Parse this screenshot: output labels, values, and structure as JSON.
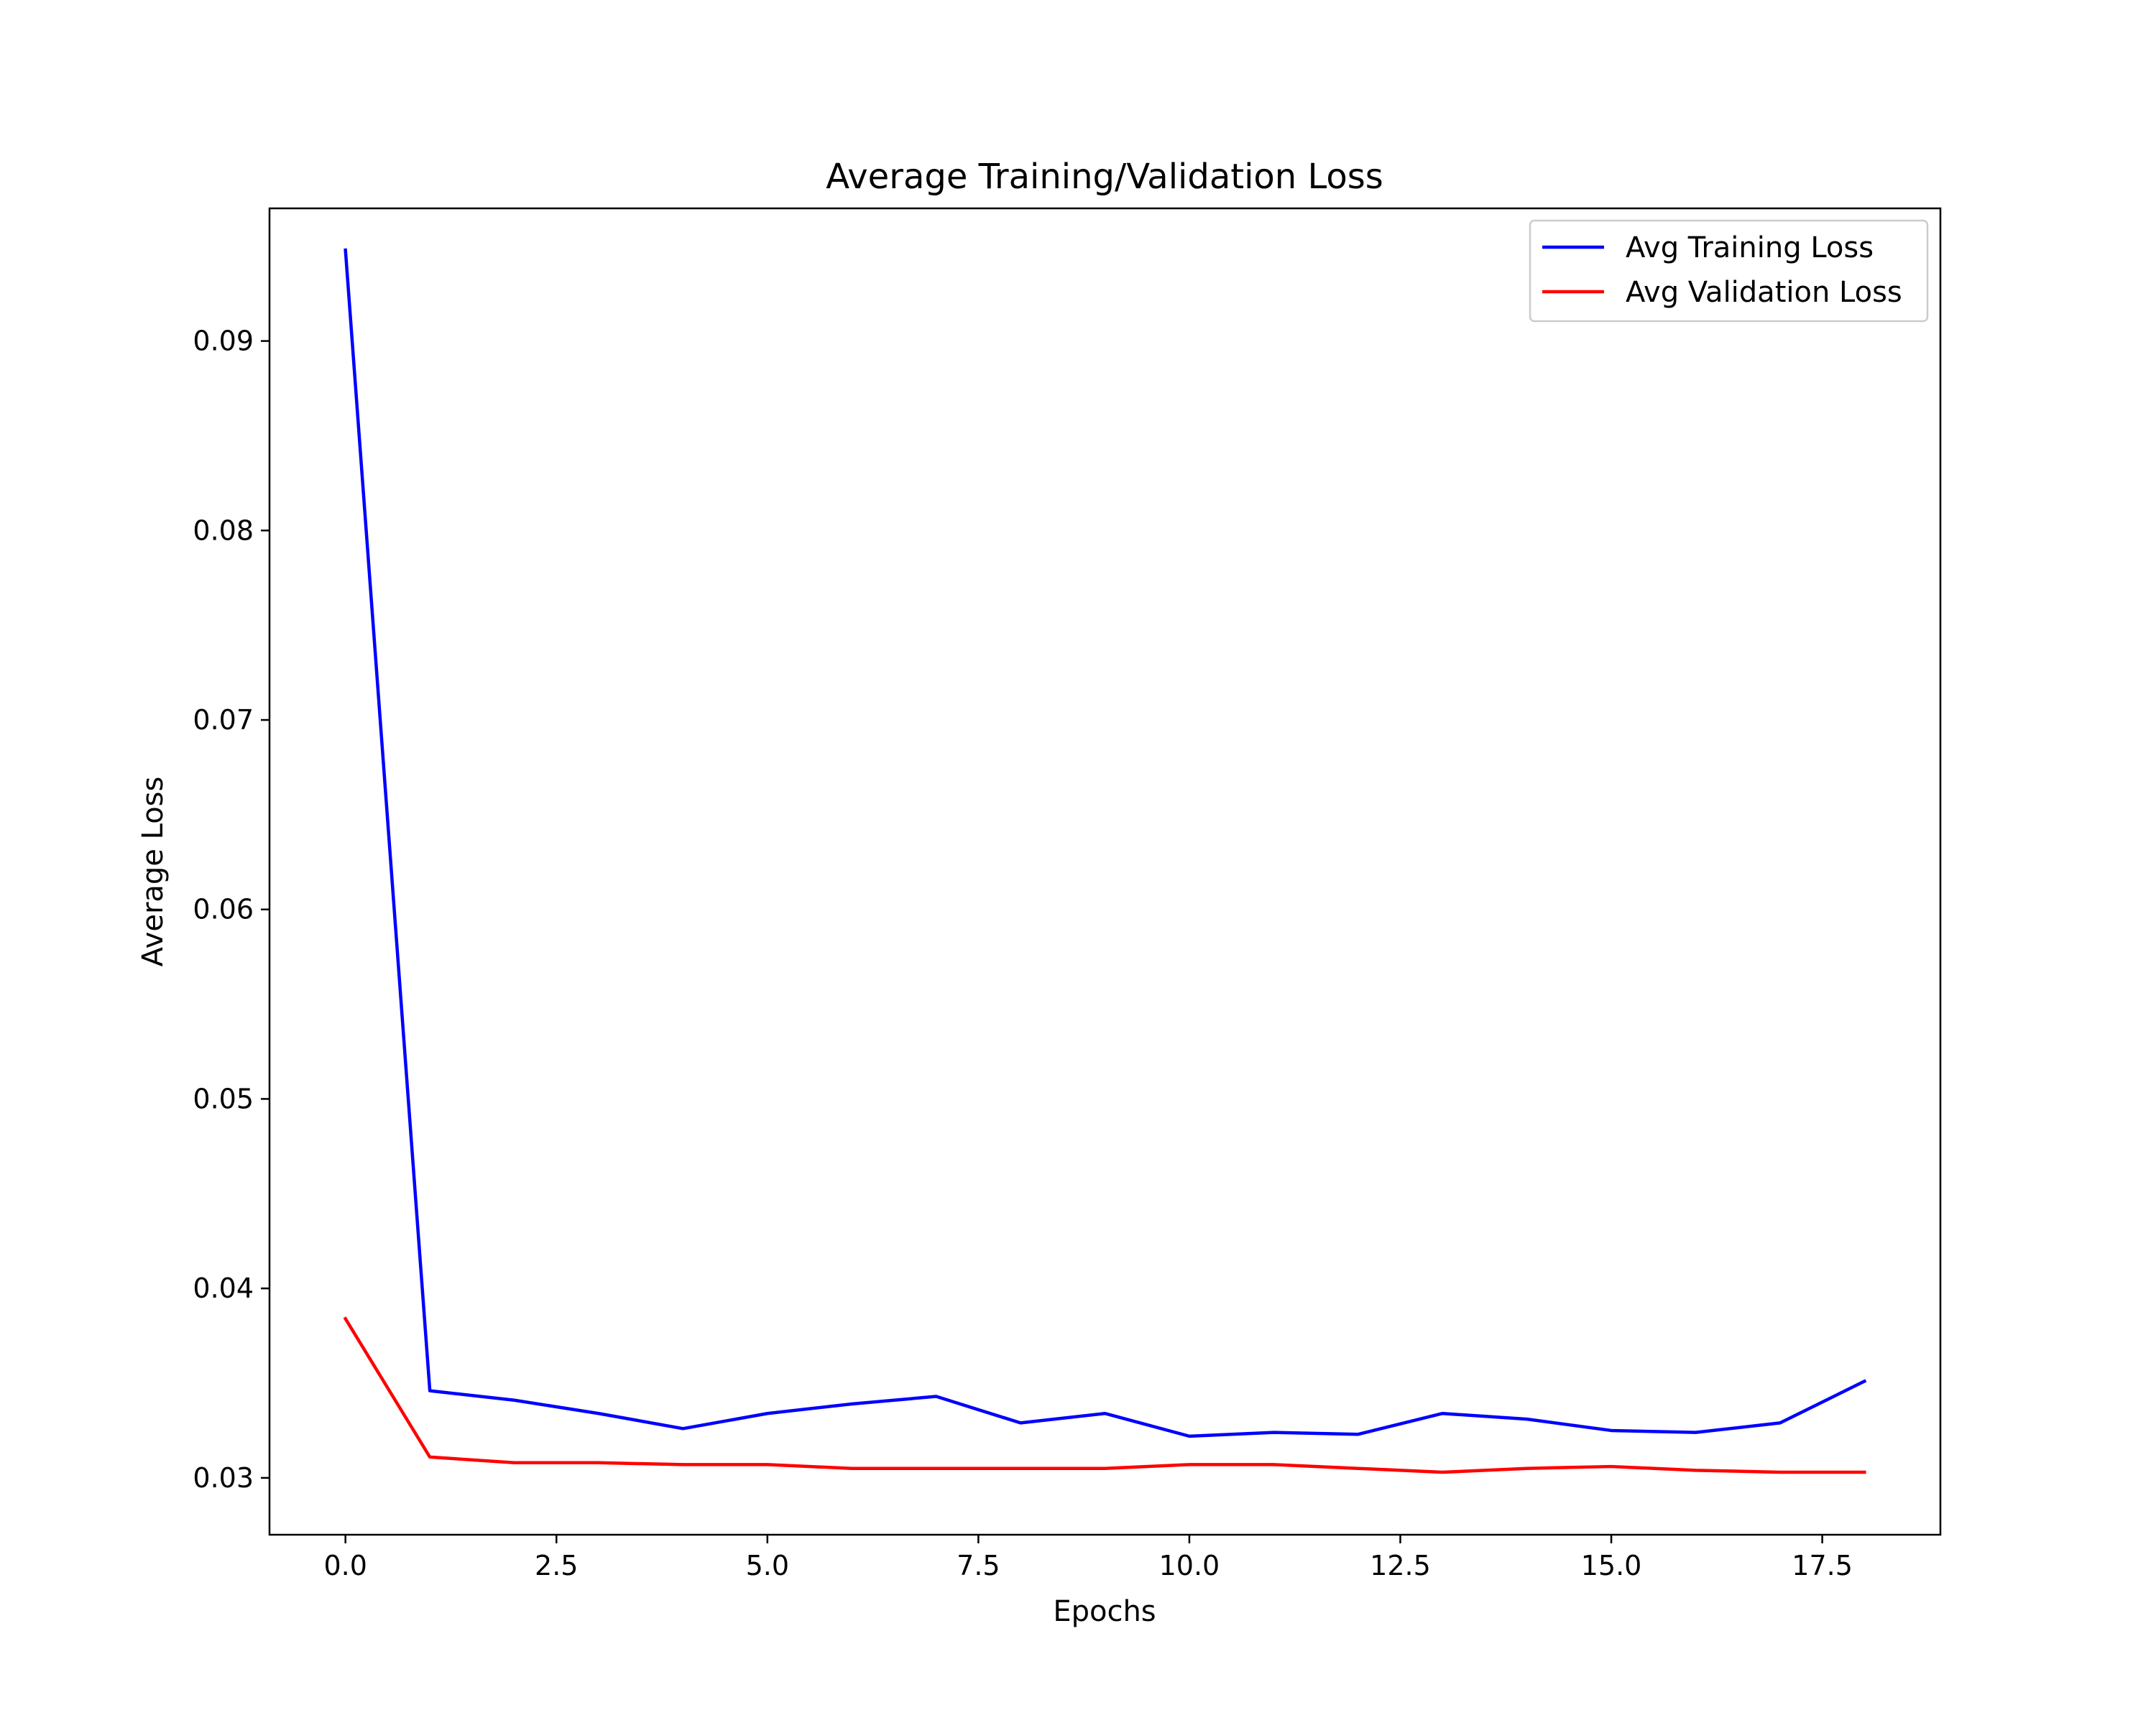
{
  "chart_data": {
    "type": "line",
    "title": "Average Training/Validation Loss",
    "xlabel": "Epochs",
    "ylabel": "Average Loss",
    "xlim": [
      -0.9,
      18.9
    ],
    "ylim": [
      0.027,
      0.097
    ],
    "xticks": [
      0.0,
      2.5,
      5.0,
      7.5,
      10.0,
      12.5,
      15.0,
      17.5
    ],
    "xtick_labels": [
      "0.0",
      "2.5",
      "5.0",
      "7.5",
      "10.0",
      "12.5",
      "15.0",
      "17.5"
    ],
    "yticks": [
      0.03,
      0.04,
      0.05,
      0.06,
      0.07,
      0.08,
      0.09
    ],
    "ytick_labels": [
      "0.03",
      "0.04",
      "0.05",
      "0.06",
      "0.07",
      "0.08",
      "0.09"
    ],
    "grid": false,
    "legend_position": "top-right",
    "x": [
      0,
      1,
      2,
      3,
      4,
      5,
      6,
      7,
      8,
      9,
      10,
      11,
      12,
      13,
      14,
      15,
      16,
      17,
      18
    ],
    "series": [
      {
        "name": "Avg Training Loss",
        "color": "#0000ff",
        "values": [
          0.0948,
          0.0346,
          0.0341,
          0.0334,
          0.0326,
          0.0334,
          0.0339,
          0.0343,
          0.0329,
          0.0334,
          0.0322,
          0.0324,
          0.0323,
          0.0334,
          0.0331,
          0.0325,
          0.0324,
          0.0329,
          0.0351
        ]
      },
      {
        "name": "Avg Validation Loss",
        "color": "#ff0000",
        "values": [
          0.0384,
          0.0311,
          0.0308,
          0.0308,
          0.0307,
          0.0307,
          0.0305,
          0.0305,
          0.0305,
          0.0305,
          0.0307,
          0.0307,
          0.0305,
          0.0303,
          0.0305,
          0.0306,
          0.0304,
          0.0303,
          0.0303
        ]
      }
    ]
  }
}
